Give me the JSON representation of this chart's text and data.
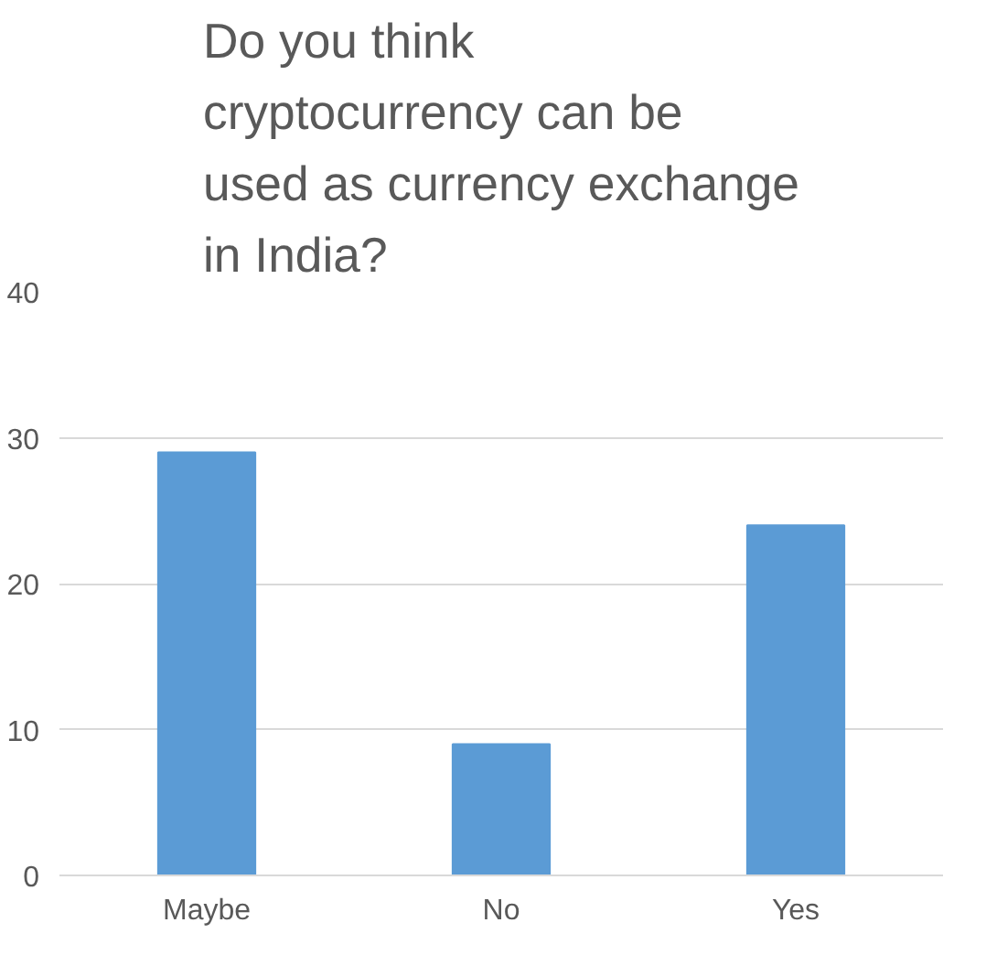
{
  "chart_data": {
    "type": "bar",
    "title": "Do you think cryptocurrency can be used as currency exchange in India?",
    "categories": [
      "Maybe",
      "No",
      "Yes"
    ],
    "values": [
      29,
      9,
      24
    ],
    "color": "#5b9bd5",
    "ylim": [
      0,
      40
    ],
    "yticks": [
      0,
      10,
      20,
      30,
      40
    ],
    "grid": "y"
  }
}
